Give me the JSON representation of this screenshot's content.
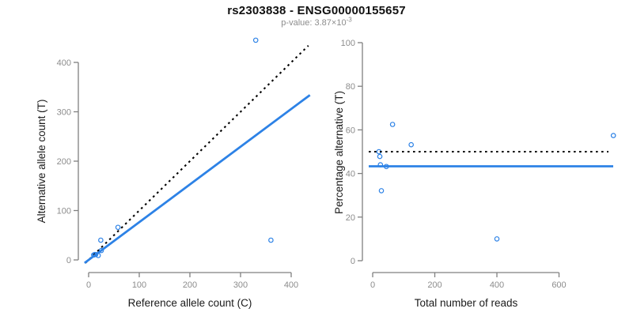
{
  "header": {
    "title": "rs2303838 - ENSG00000155657",
    "pvalue_base": "p-value: 3.87×10",
    "pvalue_exponent": "-3"
  },
  "colors": {
    "background": "#FFFFFF",
    "accent_blue": "#2D82E6",
    "dashed_black": "#000000",
    "axis_line": "#808080",
    "tick_label": "#8C8C8C",
    "axis_title": "#1A1A1A",
    "subtitle_gray": "#8C8C8C",
    "title_black": "#111111"
  },
  "chart_data": [
    {
      "type": "scatter",
      "panel": "left",
      "title": "rs2303838 - ENSG00000155657",
      "subtitle": "p-value: 3.87×10^-3",
      "xlabel": "Reference allele count (C)",
      "ylabel": "Alternative allele count (T)",
      "xlim": [
        0,
        435
      ],
      "ylim": [
        0,
        450
      ],
      "xticks": [
        0,
        100,
        200,
        300,
        400
      ],
      "yticks": [
        0,
        100,
        200,
        300,
        400
      ],
      "grid": false,
      "legend": null,
      "marker": "open-circle",
      "points": [
        [
          10,
          10
        ],
        [
          12,
          11
        ],
        [
          14,
          11
        ],
        [
          19,
          9
        ],
        [
          25,
          19
        ],
        [
          24,
          40
        ],
        [
          58,
          66
        ],
        [
          360,
          40
        ],
        [
          330,
          445
        ]
      ],
      "identity_line": {
        "slope": 1,
        "intercept": 0,
        "style": "dotted",
        "color": "#000000"
      },
      "fit_line": {
        "slope": 0.764,
        "intercept": 0,
        "style": "solid",
        "color": "#2D82E6"
      }
    },
    {
      "type": "scatter",
      "panel": "right",
      "xlabel": "Total number of reads",
      "ylabel": "Percentage alternative (T)",
      "xlim": [
        0,
        780
      ],
      "ylim": [
        0,
        100
      ],
      "xticks": [
        0,
        200,
        400,
        600
      ],
      "yticks": [
        0,
        20,
        40,
        60,
        80,
        100
      ],
      "grid": false,
      "legend": null,
      "marker": "open-circle",
      "points": [
        [
          20,
          50
        ],
        [
          23,
          47.8
        ],
        [
          25,
          44
        ],
        [
          28,
          32.1
        ],
        [
          44,
          43.2
        ],
        [
          64,
          62.5
        ],
        [
          124,
          53.2
        ],
        [
          400,
          10
        ],
        [
          775,
          57.4
        ]
      ],
      "reference_line": {
        "value": 50,
        "style": "dotted",
        "color": "#000000"
      },
      "fit_line": {
        "value": 43.3,
        "style": "solid",
        "color": "#2D82E6"
      }
    }
  ]
}
